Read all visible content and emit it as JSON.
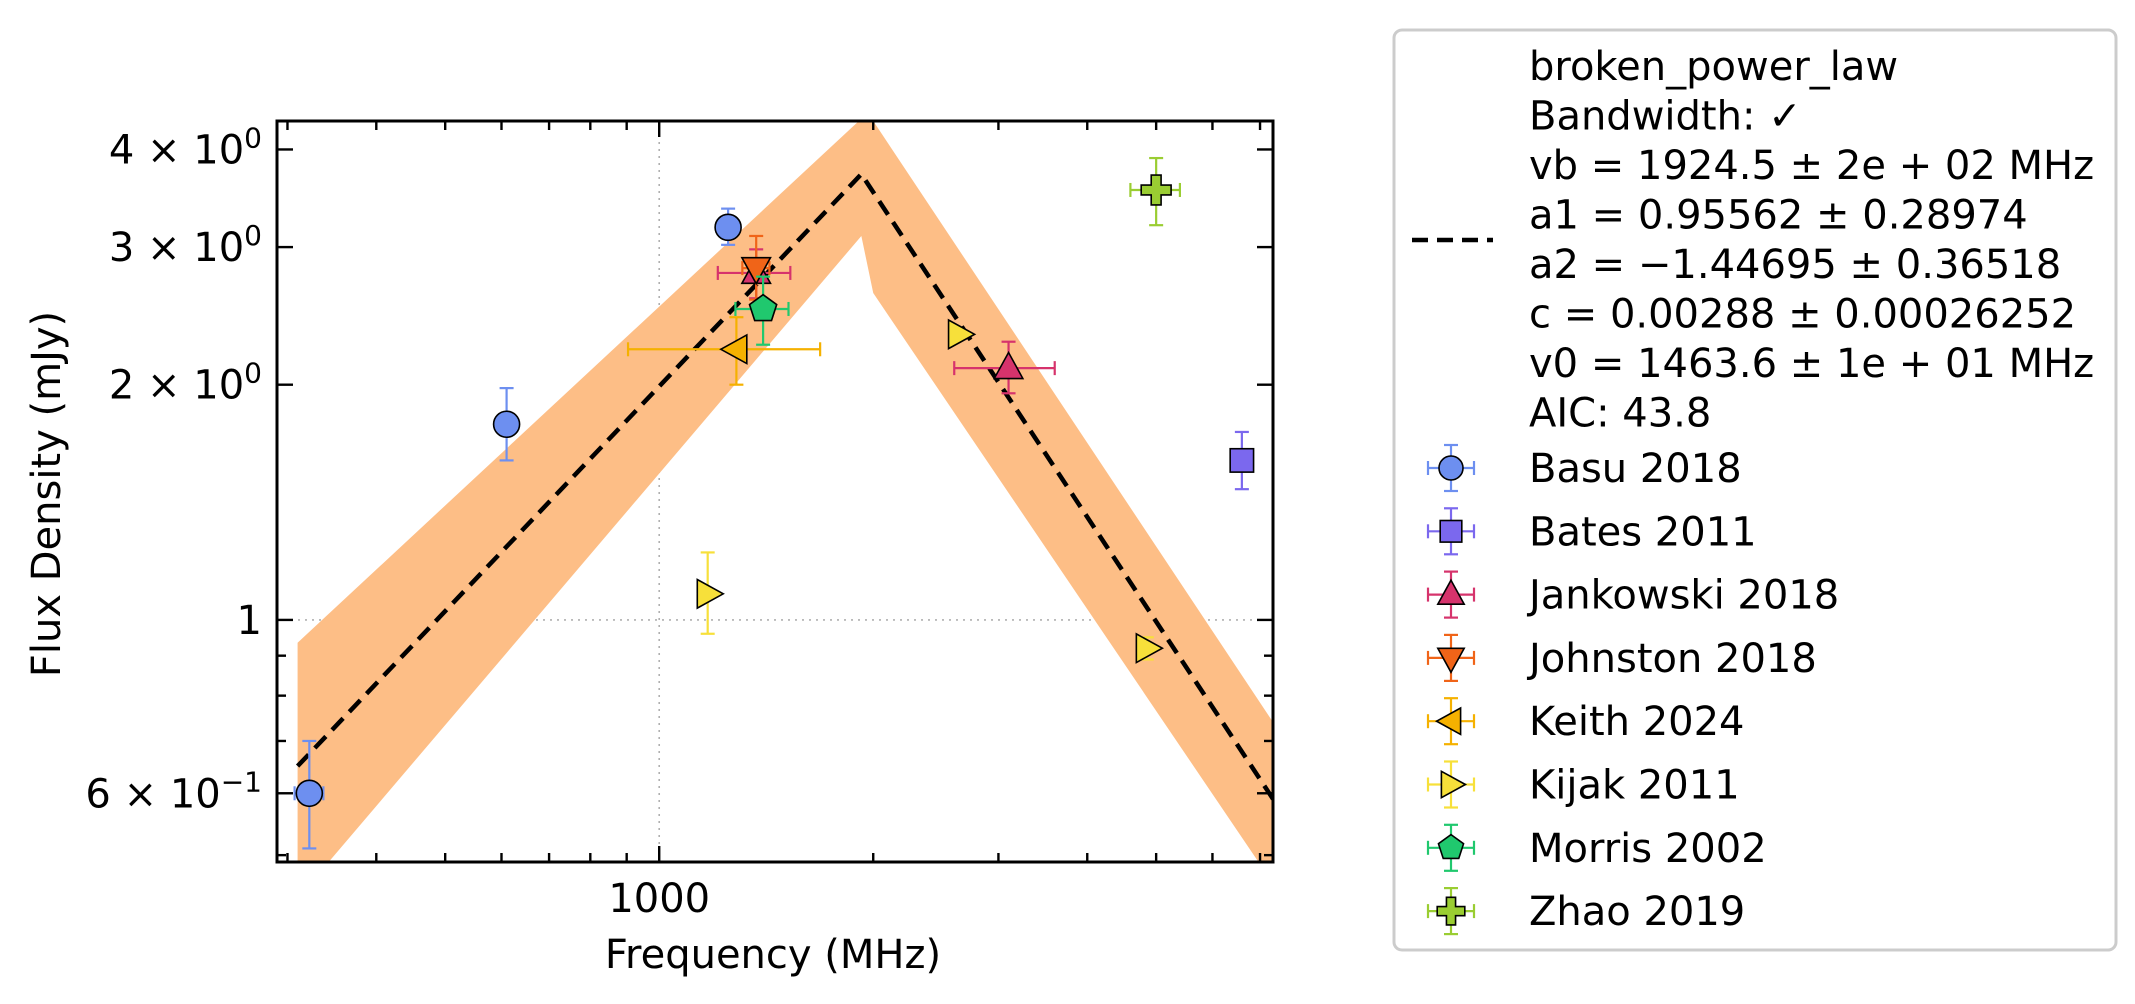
{
  "chart_data": {
    "type": "scatter",
    "title": "",
    "xlabel": "Frequency (MHz)",
    "ylabel": "Flux Density (mJy)",
    "xscale": "log",
    "yscale": "log",
    "xlim": [
      290,
      7300
    ],
    "ylim": [
      0.49,
      4.35
    ],
    "x_ticks": [
      {
        "value": 1000,
        "label": "1000"
      }
    ],
    "y_ticks": [
      {
        "value": 0.6,
        "mant": "6",
        "exp": "−1"
      },
      {
        "value": 1,
        "mant": "",
        "exp": "",
        "plain": "1"
      },
      {
        "value": 2,
        "mant": "2",
        "exp": "0"
      },
      {
        "value": 3,
        "mant": "3",
        "exp": "0"
      },
      {
        "value": 4,
        "mant": "4",
        "exp": "0"
      }
    ],
    "grid": {
      "x": [
        1000
      ],
      "y": [
        1
      ],
      "style": "dotted"
    },
    "legend_placement": "outside right",
    "fit": {
      "label": "broken_power_law",
      "params": [
        "Bandwidth: ✓",
        "vb = 1924.5 ± 2e + 02 MHz",
        "a1 = 0.95562 ± 0.28974",
        "a2 = −1.44695 ± 0.36518",
        "c = 0.00288 ± 0.00026252",
        "v0 = 1463.6 ± 1e + 01 MHz",
        "AIC: 43.8"
      ],
      "color": "#000000",
      "band_color": "#fdbe86",
      "line": [
        [
          310,
          0.65
        ],
        [
          1924.5,
          3.72
        ],
        [
          7300,
          0.59
        ]
      ],
      "band_upper": [
        [
          310,
          0.935
        ],
        [
          1924.5,
          4.38
        ],
        [
          1990,
          4.38
        ],
        [
          7300,
          0.74
        ]
      ],
      "band_lower": [
        [
          310,
          0.44
        ],
        [
          1924.5,
          3.1
        ],
        [
          2000,
          2.62
        ],
        [
          7300,
          0.46
        ]
      ]
    },
    "series": [
      {
        "name": "Basu 2018",
        "marker": "circle",
        "color": "#6d8ff0",
        "points": [
          {
            "x": 322,
            "y": 0.6,
            "xerr": 15,
            "yerr_lo": 0.09,
            "yerr_hi": 0.1
          },
          {
            "x": 610,
            "y": 1.78,
            "xerr": 0,
            "yerr_lo": 0.18,
            "yerr_hi": 0.2
          },
          {
            "x": 1250,
            "y": 3.18,
            "xerr": 0,
            "yerr_lo": 0.16,
            "yerr_hi": 0.18
          }
        ]
      },
      {
        "name": "Bates 2011",
        "marker": "square",
        "color": "#7b68ee",
        "points": [
          {
            "x": 6600,
            "y": 1.6,
            "xerr": 200,
            "yerr_lo": 0.13,
            "yerr_hi": 0.14
          }
        ]
      },
      {
        "name": "Jankowski 2018",
        "marker": "triangle-up",
        "color": "#d6336c",
        "points": [
          {
            "x": 1369,
            "y": 2.78,
            "xerr": 160,
            "yerr_lo": 0.2,
            "yerr_hi": 0.2
          },
          {
            "x": 3100,
            "y": 2.1,
            "xerr": 500,
            "yerr_lo": 0.15,
            "yerr_hi": 0.17
          }
        ]
      },
      {
        "name": "Johnston 2018",
        "marker": "triangle-down",
        "color": "#f06418",
        "points": [
          {
            "x": 1369,
            "y": 2.82,
            "xerr": 60,
            "yerr_lo": 0.25,
            "yerr_hi": 0.28
          }
        ]
      },
      {
        "name": "Keith 2024",
        "marker": "triangle-left",
        "color": "#f5b100",
        "points": [
          {
            "x": 1284,
            "y": 2.22,
            "xerr": [
              380,
              400
            ],
            "yerr_lo": 0.22,
            "yerr_hi": 0.22
          }
        ]
      },
      {
        "name": "Kijak 2011",
        "marker": "triangle-right",
        "color": "#f7e03a",
        "points": [
          {
            "x": 1170,
            "y": 1.08,
            "xerr": 0,
            "yerr_lo": 0.12,
            "yerr_hi": 0.14
          },
          {
            "x": 2640,
            "y": 2.32,
            "xerr": 0,
            "yerr_lo": 0,
            "yerr_hi": 0
          },
          {
            "x": 4850,
            "y": 0.92,
            "xerr": 0,
            "yerr_lo": 0.03,
            "yerr_hi": 0.03
          }
        ]
      },
      {
        "name": "Morris 2002",
        "marker": "pentagon",
        "color": "#20c86e",
        "points": [
          {
            "x": 1400,
            "y": 2.5,
            "xerr": 120,
            "yerr_lo": 0.25,
            "yerr_hi": 0.25
          }
        ]
      },
      {
        "name": "Zhao 2019",
        "marker": "plus",
        "color": "#9acd32",
        "points": [
          {
            "x": 5000,
            "y": 3.55,
            "xerr": 400,
            "yerr_lo": 0.35,
            "yerr_hi": 0.35
          }
        ]
      }
    ]
  }
}
